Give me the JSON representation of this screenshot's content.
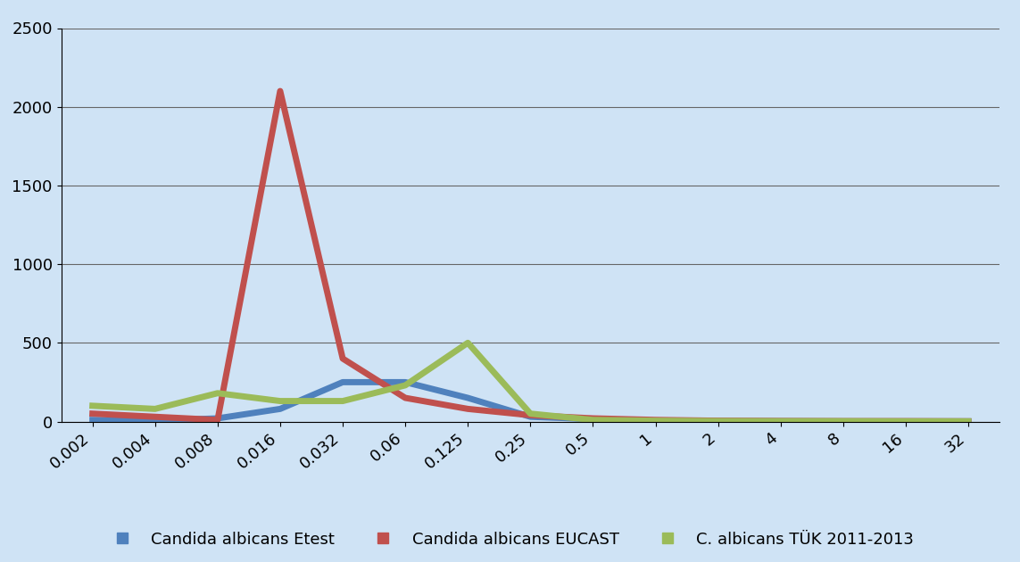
{
  "chart_data": {
    "type": "line",
    "categories": [
      "0.002",
      "0.004",
      "0.008",
      "0.016",
      "0.032",
      "0.06",
      "0.125",
      "0.25",
      "0.5",
      "1",
      "2",
      "4",
      "8",
      "16",
      "32"
    ],
    "series": [
      {
        "name": "Candida albicans Etest",
        "color": "#4f81bd",
        "values": [
          10,
          5,
          20,
          80,
          250,
          250,
          150,
          30,
          15,
          5,
          3,
          2,
          1,
          1,
          1
        ]
      },
      {
        "name": "Candida albicans EUCAST",
        "color": "#c0504d",
        "values": [
          50,
          30,
          10,
          2100,
          400,
          150,
          80,
          40,
          20,
          10,
          5,
          3,
          2,
          2,
          1
        ]
      },
      {
        "name": "C. albicans TÜK 2011-2013",
        "color": "#9bbb59",
        "values": [
          100,
          80,
          180,
          130,
          130,
          230,
          500,
          50,
          10,
          5,
          3,
          2,
          2,
          1,
          1
        ]
      }
    ],
    "ylim": [
      0,
      2500
    ],
    "yticks": [
      0,
      500,
      1000,
      1500,
      2000,
      2500
    ],
    "grid": true,
    "legend": "bottom"
  }
}
